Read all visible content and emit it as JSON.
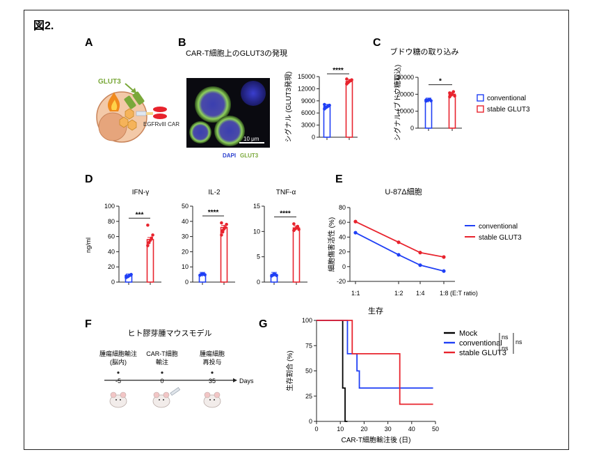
{
  "figure_title": "図2.",
  "colors": {
    "blue": "#1f3ff5",
    "red": "#e8232d",
    "black": "#000000",
    "green": "#7aa83a"
  },
  "panelA": {
    "letter": "A",
    "glut3_label": "GLUT3",
    "car_label": "EGFRvIII  CAR"
  },
  "panelB": {
    "letter": "B",
    "title": "CAR-T細胞上のGLUT3の発現",
    "image_legend": {
      "dapi": "DAPI",
      "glut3": "GLUT3"
    },
    "scale_bar": "10 μm"
  },
  "panelC": {
    "letter": "C",
    "title": "ブドウ糖の取り込み"
  },
  "legend_top": {
    "conventional": "conventional",
    "stable": "stable GLUT3"
  },
  "panelD": {
    "letter": "D",
    "ylabel": "ng/ml"
  },
  "panelE": {
    "letter": "E"
  },
  "panelF": {
    "letter": "F",
    "title": "ヒト膠芽腫マウスモデル",
    "events": [
      {
        "t": "-5",
        "label1": "腫瘍細胞輸注",
        "label2": "(脳内)"
      },
      {
        "t": "0",
        "label1": "CAR-T細胞",
        "label2": "輸注"
      },
      {
        "t": "35",
        "label1": "腫瘍細胞",
        "label2": "再投与"
      }
    ],
    "axis_unit": "Days"
  },
  "panelG": {
    "letter": "G",
    "ns1": "ns",
    "ns2": "ns"
  },
  "chart_data": [
    {
      "id": "B",
      "type": "bar",
      "title": "CAR-T細胞上のGLUT3の発現",
      "ylabel": "シグナル (GLUT3発現)",
      "ylim": [
        0,
        15000
      ],
      "yticks": [
        0,
        3000,
        6000,
        9000,
        12000,
        15000
      ],
      "series": [
        {
          "name": "conventional",
          "value": 7600,
          "points": [
            7000,
            7300,
            7500,
            7700,
            7900,
            8100,
            7400
          ]
        },
        {
          "name": "stable GLUT3",
          "value": 13800,
          "points": [
            13200,
            13500,
            13800,
            14000,
            14200,
            14400,
            13600
          ]
        }
      ],
      "significance": "****"
    },
    {
      "id": "C",
      "type": "bar",
      "title": "ブドウ糖の取り込み",
      "ylabel": "シグナル (ブドウ糖取込)",
      "ylim": [
        0,
        30000
      ],
      "yticks": [
        0,
        10000,
        20000,
        30000
      ],
      "series": [
        {
          "name": "conventional",
          "value": 16500,
          "points": [
            16000,
            16300,
            16700,
            17000,
            16200,
            16600
          ]
        },
        {
          "name": "stable GLUT3",
          "value": 20000,
          "points": [
            18500,
            19500,
            20000,
            21500,
            19000,
            20800
          ]
        }
      ],
      "significance": "*"
    },
    {
      "id": "D1",
      "type": "bar",
      "title": "IFN-γ",
      "ylabel": "ng/ml",
      "ylim": [
        0,
        100
      ],
      "yticks": [
        0,
        20,
        40,
        60,
        80,
        100
      ],
      "series": [
        {
          "name": "conventional",
          "value": 8,
          "points": [
            6,
            7,
            8,
            9,
            10,
            8
          ]
        },
        {
          "name": "stable GLUT3",
          "value": 56,
          "points": [
            48,
            52,
            55,
            58,
            62,
            75,
            52
          ]
        }
      ],
      "significance": "***"
    },
    {
      "id": "D2",
      "type": "bar",
      "title": "IL-2",
      "ylim": [
        0,
        50
      ],
      "yticks": [
        0,
        10,
        20,
        30,
        40,
        50
      ],
      "series": [
        {
          "name": "conventional",
          "value": 5,
          "points": [
            4.5,
            5,
            5.5,
            5.2,
            4.8
          ]
        },
        {
          "name": "stable GLUT3",
          "value": 36,
          "points": [
            31,
            33,
            35,
            36,
            38,
            39,
            34
          ]
        }
      ],
      "significance": "****"
    },
    {
      "id": "D3",
      "type": "bar",
      "title": "TNF-α",
      "ylim": [
        0,
        15
      ],
      "yticks": [
        0,
        5,
        10,
        15
      ],
      "series": [
        {
          "name": "conventional",
          "value": 1.5,
          "points": [
            1.2,
            1.4,
            1.6,
            1.5,
            1.3
          ]
        },
        {
          "name": "stable GLUT3",
          "value": 10.7,
          "points": [
            10.2,
            10.5,
            10.7,
            11.0,
            10.4,
            11.5
          ]
        }
      ],
      "significance": "****"
    },
    {
      "id": "E",
      "type": "line",
      "title": "U-87Δ細胞",
      "ylabel": "細胞傷害活性 (%)",
      "categories": [
        "1:1",
        "1:2",
        "1:4",
        "1:8 (E:T ratio)"
      ],
      "ylim": [
        -20,
        80
      ],
      "yticks": [
        -20,
        0,
        20,
        40,
        60,
        80
      ],
      "series": [
        {
          "name": "conventional",
          "values": [
            46,
            16,
            2,
            -6
          ]
        },
        {
          "name": "stable GLUT3",
          "values": [
            61,
            33,
            19,
            13
          ]
        }
      ],
      "legend": "right"
    },
    {
      "id": "G",
      "type": "line",
      "title": "生存",
      "xlabel": "CAR-T細胞輸注後 (日)",
      "ylabel": "生存割合 (%)",
      "xlim": [
        0,
        50
      ],
      "ylim": [
        0,
        100
      ],
      "xticks": [
        0,
        10,
        20,
        30,
        40,
        50
      ],
      "yticks": [
        0,
        25,
        50,
        75,
        100
      ],
      "series": [
        {
          "name": "Mock",
          "steps": [
            [
              0,
              100
            ],
            [
              11,
              100
            ],
            [
              11,
              33
            ],
            [
              12,
              33
            ],
            [
              12,
              0
            ],
            [
              13,
              0
            ]
          ]
        },
        {
          "name": "conventional",
          "steps": [
            [
              0,
              100
            ],
            [
              13,
              100
            ],
            [
              13,
              67
            ],
            [
              17,
              67
            ],
            [
              17,
              50
            ],
            [
              18,
              50
            ],
            [
              18,
              33
            ],
            [
              49,
              33
            ]
          ]
        },
        {
          "name": "stable GLUT3",
          "steps": [
            [
              0,
              100
            ],
            [
              15,
              100
            ],
            [
              15,
              67
            ],
            [
              35,
              67
            ],
            [
              35,
              17
            ],
            [
              49,
              17
            ]
          ]
        }
      ],
      "legend": "top-right"
    }
  ]
}
